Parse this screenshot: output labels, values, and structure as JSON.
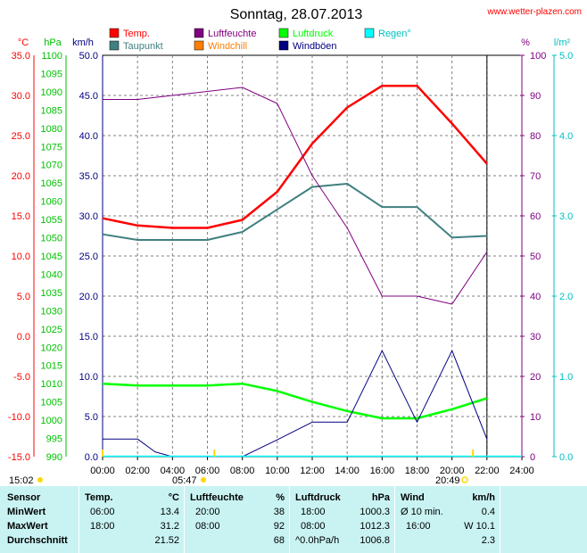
{
  "site_label": "www.wetter-plazen.com",
  "chart_data": {
    "type": "line",
    "title": "Sonntag, 28.07.2013",
    "x_ticks": [
      "00:00",
      "02:00",
      "04:00",
      "06:00",
      "08:00",
      "10:00",
      "12:00",
      "14:00",
      "16:00",
      "18:00",
      "20:00",
      "22:00",
      "24:00"
    ],
    "x_range_hours": [
      0,
      24
    ],
    "data_end_hour": 22,
    "grid": true,
    "legend_position": "top",
    "legend": [
      {
        "label": "Temp.",
        "color": "#ff0000"
      },
      {
        "label": "Taupunkt",
        "color": "#408080"
      },
      {
        "label": "Luftfeuchte",
        "color": "#800080"
      },
      {
        "label": "Windchill",
        "color": "#ff8000"
      },
      {
        "label": "Luftdruck",
        "color": "#00ff00"
      },
      {
        "label": "Windböen",
        "color": "#000080"
      },
      {
        "label": "Regen°",
        "color": "#00ffff"
      }
    ],
    "axes": {
      "temp": {
        "unit": "°C",
        "min": -15,
        "max": 35,
        "color": "#ff0000",
        "ticks": [
          "35.0",
          "30.0",
          "25.0",
          "20.0",
          "15.0",
          "10.0",
          "5.0",
          "0.0",
          "-5.0",
          "-10.0",
          "-15.0"
        ]
      },
      "pressure": {
        "unit": "hPa",
        "min": 990,
        "max": 1100,
        "color": "#00c000",
        "ticks": [
          "1100",
          "1095",
          "1090",
          "1085",
          "1080",
          "1075",
          "1070",
          "1065",
          "1060",
          "1055",
          "1050",
          "1045",
          "1040",
          "1035",
          "1030",
          "1025",
          "1020",
          "1015",
          "1010",
          "1005",
          "1000",
          "995",
          "990"
        ]
      },
      "wind": {
        "unit": "km/h",
        "min": 0,
        "max": 50,
        "color": "#000080",
        "ticks": [
          "50.0",
          "45.0",
          "40.0",
          "35.0",
          "30.0",
          "25.0",
          "20.0",
          "15.0",
          "10.0",
          "5.0",
          "0.0"
        ]
      },
      "humidity": {
        "unit": "%",
        "min": 0,
        "max": 100,
        "color": "#800080",
        "ticks": [
          "100",
          "90",
          "80",
          "70",
          "60",
          "50",
          "40",
          "30",
          "20",
          "10",
          "0"
        ]
      },
      "rain": {
        "unit": "l/m²",
        "min": 0,
        "max": 5,
        "color": "#00c0c0",
        "ticks": [
          "5.0",
          "4.0",
          "3.0",
          "2.0",
          "1.0",
          "0.0"
        ]
      }
    },
    "series": [
      {
        "name": "Temp.",
        "axis": "temp",
        "color": "#ff0000",
        "width": 2.5,
        "x": [
          0,
          2,
          4,
          6,
          8,
          10,
          12,
          14,
          16,
          18,
          20,
          22
        ],
        "y": [
          14.7,
          13.8,
          13.5,
          13.5,
          14.5,
          18.0,
          24.0,
          28.5,
          31.2,
          31.2,
          26.5,
          21.5
        ]
      },
      {
        "name": "Taupunkt",
        "axis": "temp",
        "color": "#408080",
        "width": 2,
        "x": [
          0,
          2,
          4,
          6,
          8,
          10,
          12,
          14,
          16,
          18,
          20,
          22
        ],
        "y": [
          12.7,
          12.0,
          12.0,
          12.0,
          13.0,
          15.8,
          18.6,
          19.0,
          16.1,
          16.1,
          12.3,
          12.5
        ]
      },
      {
        "name": "Luftfeuchte",
        "axis": "humidity",
        "color": "#800080",
        "width": 1,
        "x": [
          0,
          2,
          4,
          6,
          8,
          10,
          12,
          14,
          16,
          18,
          20,
          22
        ],
        "y": [
          89,
          89,
          90,
          91,
          92,
          88,
          70,
          57,
          40,
          40,
          38,
          51
        ]
      },
      {
        "name": "Luftdruck",
        "axis": "pressure",
        "color": "#00ff00",
        "width": 2.5,
        "x": [
          0,
          2,
          4,
          6,
          8,
          10,
          12,
          14,
          16,
          18,
          20,
          22
        ],
        "y": [
          1010.0,
          1009.5,
          1009.5,
          1009.5,
          1010.0,
          1008.0,
          1005.0,
          1002.5,
          1000.5,
          1000.5,
          1003.0,
          1006.0
        ]
      },
      {
        "name": "Windböen",
        "axis": "wind",
        "color": "#000080",
        "width": 1,
        "x": [
          0,
          2,
          3,
          4,
          6,
          8,
          10,
          12,
          14,
          16,
          18,
          20,
          22
        ],
        "y": [
          2.2,
          2.2,
          0.6,
          0,
          0,
          0,
          2.1,
          4.3,
          4.3,
          13.2,
          4.3,
          13.2,
          2.2
        ]
      }
    ],
    "sun_markers": [
      {
        "label": "15:02",
        "hour": 0
      },
      {
        "label": "05:47",
        "hour": 6.4
      },
      {
        "label": "20:49",
        "hour": 21.2
      }
    ]
  },
  "stats": {
    "headers": {
      "sensor": "Sensor",
      "temp": "Temp.",
      "temp_unit": "°C",
      "hum": "Luftfeuchte",
      "hum_unit": "%",
      "press": "Luftdruck",
      "press_unit": "hPa",
      "wind": "Wind",
      "wind_unit": "km/h"
    },
    "rows": [
      {
        "label": "MinWert",
        "temp_time": "06:00",
        "temp_val": "13.4",
        "hum_time": "20:00",
        "hum_val": "38",
        "press_time": "18:00",
        "press_val": "1000.3",
        "wind_desc": "Ø 10 min.",
        "wind_val": "0.4"
      },
      {
        "label": "MaxWert",
        "temp_time": "18:00",
        "temp_val": "31.2",
        "hum_time": "08:00",
        "hum_val": "92",
        "press_time": "08:00",
        "press_val": "1012.3",
        "wind_desc": "16:00",
        "wind_val": "W 10.1"
      },
      {
        "label": "Durchschnitt",
        "temp_time": "",
        "temp_val": "21.52",
        "hum_time": "",
        "hum_val": "68",
        "press_time": "^0.0hPa/h",
        "press_val": "1006.8",
        "wind_desc": "",
        "wind_val": "2.3"
      }
    ]
  }
}
